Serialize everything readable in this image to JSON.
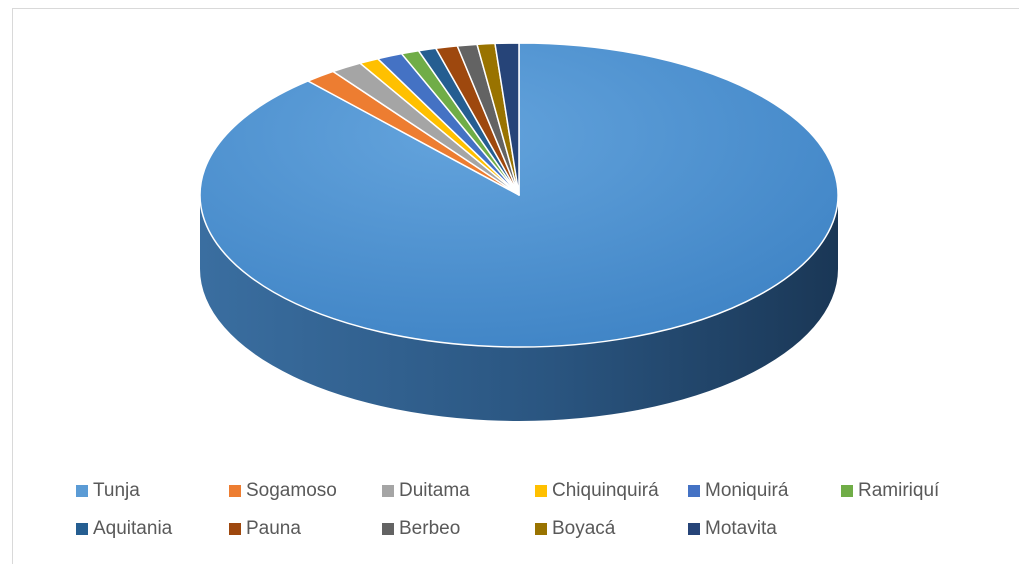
{
  "chart_data": {
    "type": "pie",
    "style": "3d",
    "title": "",
    "legend_position": "bottom",
    "categories": [
      "Tunja",
      "Sogamoso",
      "Duitama",
      "Chiquinquirá",
      "Moniquirá",
      "Ramiriquí",
      "Aquitania",
      "Pauna",
      "Berbeo",
      "Boyacá",
      "Motavita"
    ],
    "values": [
      88.5,
      1.6,
      1.6,
      1.0,
      1.3,
      0.9,
      0.9,
      1.1,
      1.0,
      0.9,
      1.2
    ],
    "colors": [
      "#5b9bd5",
      "#ed7d31",
      "#a5a5a5",
      "#ffc000",
      "#4472c4",
      "#70ad47",
      "#255e91",
      "#9e480e",
      "#636363",
      "#997300",
      "#264478"
    ]
  }
}
